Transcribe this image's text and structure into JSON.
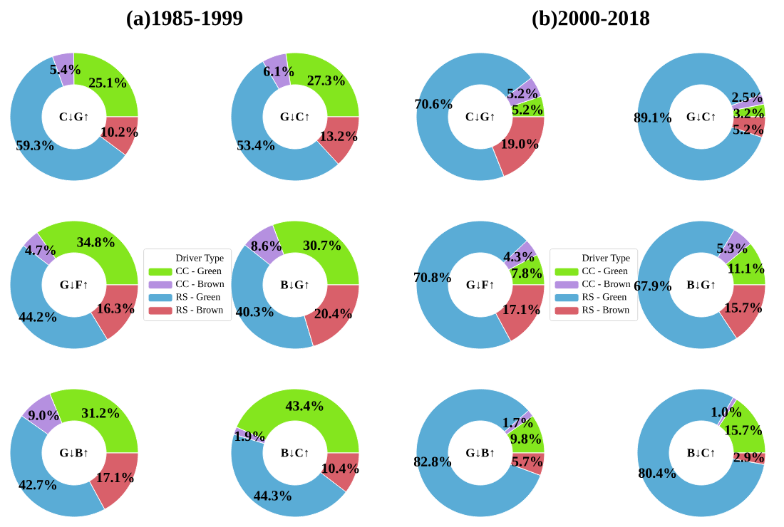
{
  "chart_data": [
    {
      "type": "donut",
      "title": "(a)1985-1999",
      "annotations": [
        "C↓G↑"
      ],
      "categories": [
        null,
        null,
        null,
        null
      ],
      "values": [
        25.1,
        5.4,
        59.3,
        10.2
      ],
      "value_labels": [
        "25.1%",
        "5.4%",
        "59.3%",
        "10.2%"
      ],
      "colors": [
        "#84e61e",
        "#b590e0",
        "#5aacd6",
        "#d9606a"
      ]
    },
    {
      "type": "donut",
      "annotations": [
        "G↓C↑"
      ],
      "categories": [
        null,
        null,
        null,
        null
      ],
      "values": [
        27.3,
        6.1,
        53.4,
        13.2
      ],
      "value_labels": [
        "27.3%",
        "6.1%",
        "53.4%",
        "13.2%"
      ],
      "colors": [
        "#84e61e",
        "#b590e0",
        "#5aacd6",
        "#d9606a"
      ]
    },
    {
      "type": "donut",
      "title": "(b)2000-2018",
      "annotations": [
        "C↓G↑"
      ],
      "categories": [
        null,
        null,
        null,
        null
      ],
      "values": [
        5.2,
        5.2,
        70.6,
        19.0
      ],
      "value_labels": [
        "5.2%",
        "5.2%",
        "70.6%",
        "19.0%"
      ],
      "colors": [
        "#84e61e",
        "#b590e0",
        "#5aacd6",
        "#d9606a"
      ]
    },
    {
      "type": "donut",
      "annotations": [
        "G↓C↑"
      ],
      "categories": [
        null,
        null,
        null,
        null
      ],
      "values": [
        3.2,
        2.5,
        89.1,
        5.2
      ],
      "value_labels": [
        "3.2%",
        "2.5%",
        "89.1%",
        "5.2%"
      ],
      "colors": [
        "#84e61e",
        "#b590e0",
        "#5aacd6",
        "#d9606a"
      ]
    },
    {
      "type": "donut",
      "annotations": [
        "G↓F↑"
      ],
      "categories": [
        "CC - Green",
        "CC - Brown",
        "RS - Green",
        "RS - Brown"
      ],
      "legend": "right",
      "legend_title": "Driver Type",
      "values": [
        34.8,
        4.7,
        44.2,
        16.3
      ],
      "value_labels": [
        "34.8%",
        "4.7%",
        "44.2%",
        "16.3%"
      ],
      "colors": [
        "#84e61e",
        "#b590e0",
        "#5aacd6",
        "#d9606a"
      ]
    },
    {
      "type": "donut",
      "annotations": [
        "B↓G↑"
      ],
      "categories": [
        null,
        null,
        null,
        null
      ],
      "values": [
        30.7,
        8.6,
        40.3,
        20.4
      ],
      "value_labels": [
        "30.7%",
        "8.6%",
        "40.3%",
        "20.4%"
      ],
      "colors": [
        "#84e61e",
        "#b590e0",
        "#5aacd6",
        "#d9606a"
      ]
    },
    {
      "type": "donut",
      "annotations": [
        "G↓F↑"
      ],
      "categories": [
        "CC - Green",
        "CC - Brown",
        "RS - Green",
        "RS - Brown"
      ],
      "legend": "right",
      "legend_title": "Driver Type",
      "values": [
        7.8,
        4.3,
        70.8,
        17.1
      ],
      "value_labels": [
        "7.8%",
        "4.3%",
        "70.8%",
        "17.1%"
      ],
      "colors": [
        "#84e61e",
        "#b590e0",
        "#5aacd6",
        "#d9606a"
      ]
    },
    {
      "type": "donut",
      "annotations": [
        "B↓G↑"
      ],
      "categories": [
        null,
        null,
        null,
        null
      ],
      "values": [
        11.1,
        5.3,
        67.9,
        15.7
      ],
      "value_labels": [
        "11.1%",
        "5.3%",
        "67.9%",
        "15.7%"
      ],
      "colors": [
        "#84e61e",
        "#b590e0",
        "#5aacd6",
        "#d9606a"
      ]
    },
    {
      "type": "donut",
      "annotations": [
        "G↓B↑"
      ],
      "categories": [
        null,
        null,
        null,
        null
      ],
      "values": [
        31.2,
        9.0,
        42.7,
        17.1
      ],
      "value_labels": [
        "31.2%",
        "9.0%",
        "42.7%",
        "17.1%"
      ],
      "colors": [
        "#84e61e",
        "#b590e0",
        "#5aacd6",
        "#d9606a"
      ]
    },
    {
      "type": "donut",
      "annotations": [
        "B↓C↑"
      ],
      "categories": [
        null,
        null,
        null,
        null
      ],
      "values": [
        43.4,
        1.9,
        44.3,
        10.4
      ],
      "value_labels": [
        "43.4%",
        "1.9%",
        "44.3%",
        "10.4%"
      ],
      "colors": [
        "#84e61e",
        "#b590e0",
        "#5aacd6",
        "#d9606a"
      ]
    },
    {
      "type": "donut",
      "annotations": [
        "G↓B↑"
      ],
      "categories": [
        null,
        null,
        null,
        null
      ],
      "values": [
        9.8,
        1.7,
        82.8,
        5.7
      ],
      "value_labels": [
        "9.8%",
        "1.7%",
        "82.8%",
        "5.7%"
      ],
      "colors": [
        "#84e61e",
        "#b590e0",
        "#5aacd6",
        "#d9606a"
      ]
    },
    {
      "type": "donut",
      "annotations": [
        "B↓C↑"
      ],
      "categories": [
        null,
        null,
        null,
        null
      ],
      "values": [
        15.7,
        1.0,
        80.4,
        2.9
      ],
      "value_labels": [
        "15.7%",
        "1.0%",
        "80.4%",
        "2.9%"
      ],
      "colors": [
        "#84e61e",
        "#b590e0",
        "#5aacd6",
        "#d9606a"
      ]
    }
  ]
}
